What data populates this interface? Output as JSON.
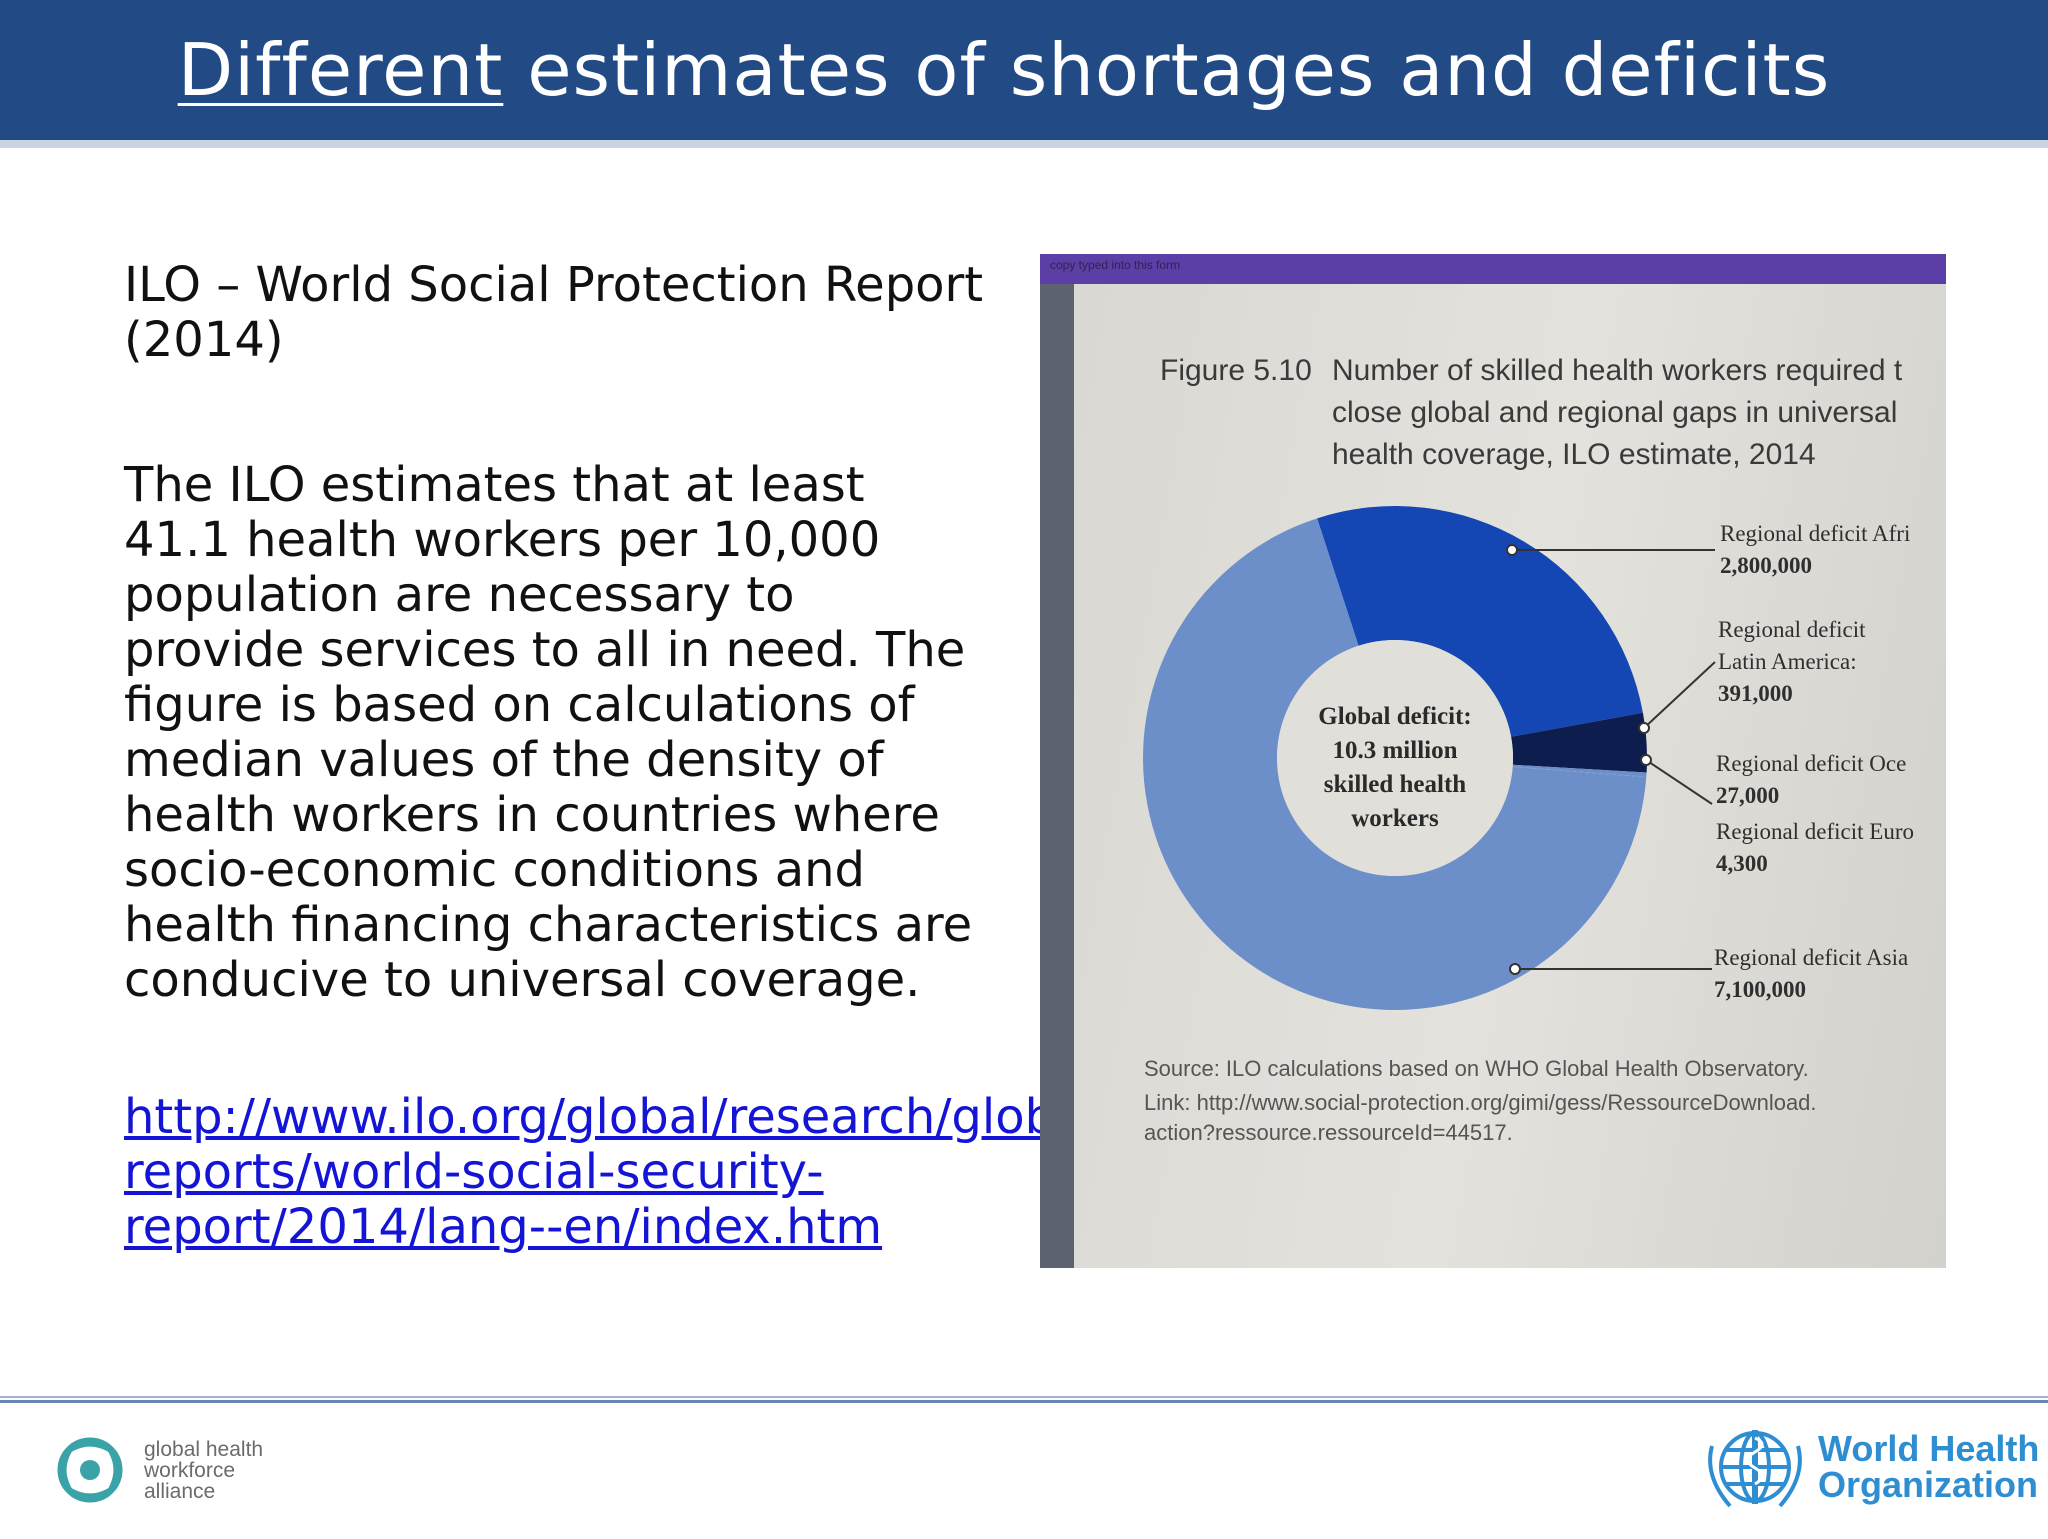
{
  "header": {
    "title_underlined": "Different",
    "title_rest": " estimates of shortages and deficits"
  },
  "left": {
    "reference": "ILO – World Social Protection Report (2014)",
    "body": "The ILO estimates that at least 41.1 health workers per 10,000 population are necessary to provide services to all in need. The figure is based on calculations of median values of the density of health workers in countries where socio-economic conditions and health financing characteristics are conducive to universal coverage.",
    "link": "http://www.ilo.org/global/research/global-reports/world-social-security-report/2014/lang--en/index.htm"
  },
  "figure": {
    "top_band_text": "copy typed into this form",
    "number": "Figure 5.10",
    "title_lines": [
      "Number of skilled health workers required t",
      "close global and regional gaps in universal",
      "health coverage, ILO estimate, 2014"
    ],
    "center_lines": [
      "Global deficit:",
      "10.3 million",
      "skilled health",
      "workers"
    ],
    "callouts": {
      "africa": {
        "label": "Regional deficit Afri",
        "value": "2,800,000"
      },
      "latam": {
        "label1": "Regional deficit",
        "label2": "Latin America:",
        "value": "391,000"
      },
      "oceania": {
        "label": "Regional deficit Oce",
        "value": "27,000"
      },
      "europe": {
        "label": "Regional deficit Euro",
        "value": "4,300"
      },
      "asia": {
        "label": "Regional deficit Asia",
        "value": "7,100,000"
      }
    },
    "source": "Source: ILO calculations based on WHO Global Health Observatory.",
    "link_line1": "Link: http://www.social-protection.org/gimi/gess/RessourceDownload.",
    "link_line2": "action?ressource.ressourceId=44517."
  },
  "chart_data": {
    "type": "pie",
    "categories": [
      "Africa",
      "Latin America",
      "Oceania",
      "Europe",
      "Asia"
    ],
    "values": [
      2800000,
      391000,
      27000,
      4300,
      7100000
    ],
    "colors": [
      "#1446b4",
      "#0d1d4e",
      "#6c8fc9",
      "#6c8fc9",
      "#6c8fc9"
    ]
  },
  "footer": {
    "left_logo_lines": [
      "global health",
      "workforce",
      "alliance"
    ],
    "right_logo_lines": [
      "World Health",
      "Organization"
    ]
  }
}
